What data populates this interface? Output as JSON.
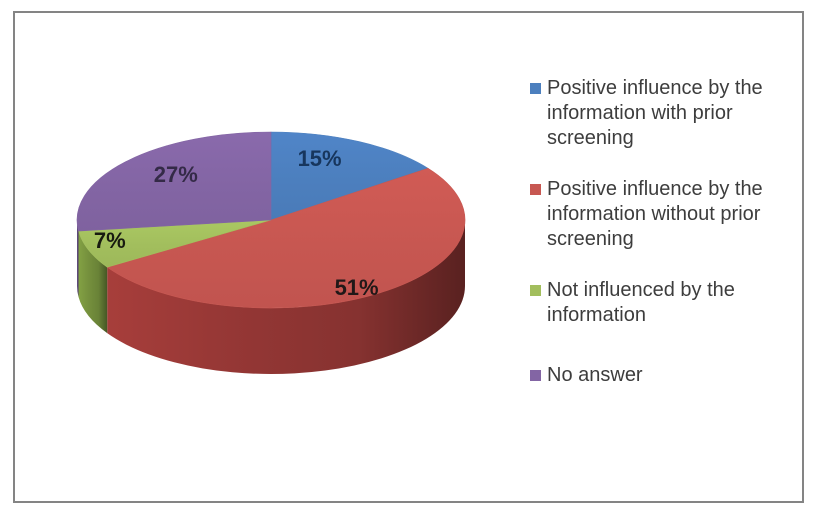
{
  "window": {
    "background": "#ffffff",
    "frame_border_color": "#848484"
  },
  "chart_data": {
    "type": "pie",
    "projection": "3d",
    "title": "",
    "legend_position": "right",
    "start_angle_deg": 0,
    "direction": "clockwise",
    "grid": false,
    "slices": [
      {
        "label": "Positive influence by the\ninformation with prior\nscreening",
        "value": 15,
        "display_label": "15%",
        "color": "#4C7FBE",
        "side_color": "#36618F",
        "label_color": "#17365D"
      },
      {
        "label": "Positive influence by the\ninformation without prior\nscreening",
        "value": 51,
        "display_label": "51%",
        "color": "#C75751",
        "side_color": "#953735",
        "label_color": "#201818"
      },
      {
        "label": "Not influenced by the\ninformation",
        "value": 7,
        "display_label": "7%",
        "color": "#A2BE5D",
        "side_color": "#75903D",
        "label_color": "#181A10"
      },
      {
        "label": "No answer",
        "value": 27,
        "display_label": "27%",
        "color": "#8365A4",
        "side_color": "#5D4879",
        "label_color": "#342A47"
      }
    ]
  }
}
